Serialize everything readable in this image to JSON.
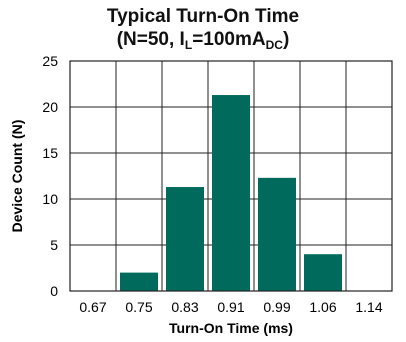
{
  "chart_data": {
    "type": "bar",
    "title_line1": "Typical Turn-On Time",
    "title_line2": {
      "prefix": "(N=50, I",
      "sub1": "L",
      "mid": "=100mA",
      "sub2": "DC",
      "suffix": ")"
    },
    "xlabel": "Turn-On Time (ms)",
    "ylabel": "Device Count (N)",
    "x_ticks": [
      "0.67",
      "0.75",
      "0.83",
      "0.91",
      "0.99",
      "1.06",
      "1.14"
    ],
    "y_ticks": [
      0,
      5,
      10,
      15,
      20,
      25
    ],
    "ylim": [
      0,
      25
    ],
    "bars": [
      {
        "bin": [
          "0.75",
          "0.83"
        ],
        "value": 2
      },
      {
        "bin": [
          "0.83",
          "0.91"
        ],
        "value": 11.3
      },
      {
        "bin": [
          "0.91",
          "0.99"
        ],
        "value": 21.3
      },
      {
        "bin": [
          "0.99",
          "1.06"
        ],
        "value": 12.3
      },
      {
        "bin": [
          "1.06",
          "1.14"
        ],
        "value": 4
      }
    ],
    "bar_color": "#006b5c",
    "grid": true
  }
}
